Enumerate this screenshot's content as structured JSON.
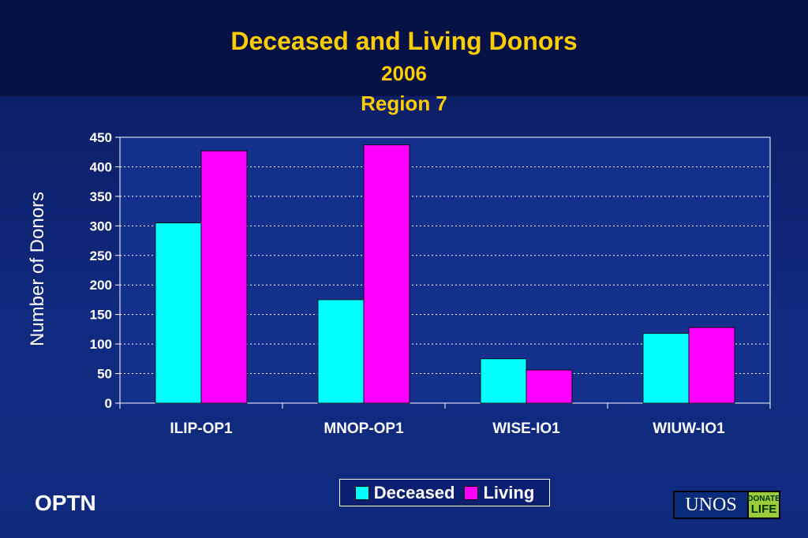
{
  "title": "Deceased and Living Donors",
  "subtitle_year": "2006",
  "subtitle_region": "Region 7",
  "brand": "OPTN",
  "logo": {
    "main": "UNOS",
    "side_top": "DONATE",
    "side_bottom": "LIFE"
  },
  "chart_data": {
    "type": "bar",
    "categories": [
      "ILIP-OP1",
      "MNOP-OP1",
      "WISE-IO1",
      "WIUW-IO1"
    ],
    "series": [
      {
        "name": "Deceased",
        "color": "#00ffff",
        "values": [
          305,
          175,
          75,
          118
        ]
      },
      {
        "name": "Living",
        "color": "#ff00ff",
        "values": [
          427,
          437,
          56,
          128
        ]
      }
    ],
    "ylabel": "Number of Donors",
    "ylim": [
      0,
      450
    ],
    "yticks": [
      0,
      50,
      100,
      150,
      200,
      250,
      300,
      350,
      400,
      450
    ],
    "grid": true,
    "legend_position": "bottom"
  }
}
